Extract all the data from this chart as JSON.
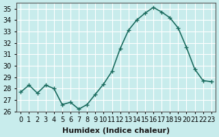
{
  "x": [
    0,
    1,
    2,
    3,
    4,
    5,
    6,
    7,
    8,
    9,
    10,
    11,
    12,
    13,
    14,
    15,
    16,
    17,
    18,
    19,
    20,
    21,
    22,
    23
  ],
  "y": [
    27.7,
    28.3,
    27.6,
    28.3,
    28.0,
    26.6,
    26.8,
    26.2,
    26.6,
    27.5,
    28.4,
    29.5,
    31.5,
    33.1,
    34.0,
    34.6,
    35.1,
    34.7,
    34.2,
    33.3,
    31.6,
    29.7,
    28.7,
    28.6
  ],
  "line_color": "#1a6b5e",
  "marker": "+",
  "marker_size": 5,
  "linewidth": 1.2,
  "bg_color": "#c8ecec",
  "grid_color": "#ffffff",
  "xlabel": "Humidex (Indice chaleur)",
  "xlabel_fontsize": 8,
  "tick_fontsize": 7,
  "yticks": [
    26,
    27,
    28,
    29,
    30,
    31,
    32,
    33,
    34,
    35
  ],
  "ylim": [
    26,
    35.5
  ],
  "xlim": [
    -0.5,
    23.5
  ]
}
